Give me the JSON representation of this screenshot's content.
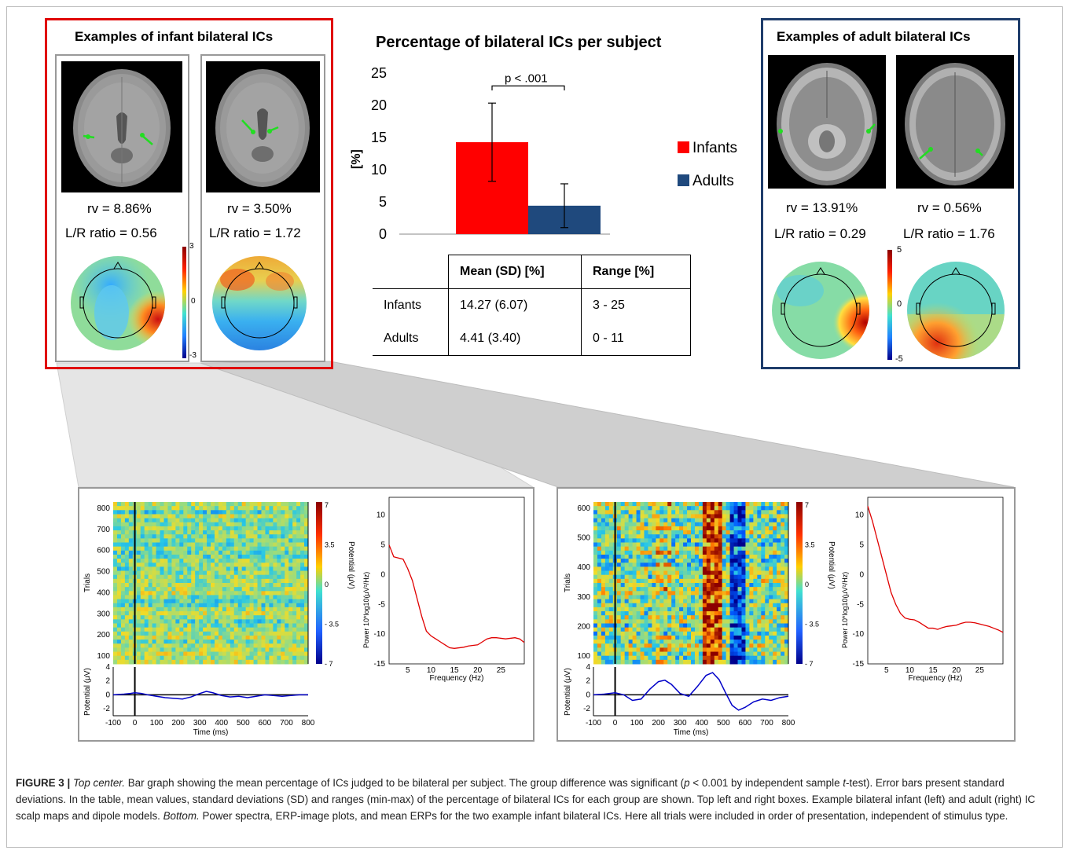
{
  "infant_panel": {
    "title": "Examples of infant bilateral ICs",
    "ic1": {
      "rv": "rv = 8.86%",
      "lr": "L/R ratio = 0.56"
    },
    "ic2": {
      "rv": "rv = 3.50%",
      "lr": "L/R ratio = 1.72"
    },
    "scale": {
      "max": "3",
      "mid": "0",
      "min": "-3"
    }
  },
  "adult_panel": {
    "title": "Examples of adult bilateral ICs",
    "ic1": {
      "rv": "rv = 13.91%",
      "lr": "L/R ratio = 0.29"
    },
    "ic2": {
      "rv": "rv = 0.56%",
      "lr": "L/R ratio = 1.76"
    },
    "scale": {
      "max": "5",
      "mid": "0",
      "min": "-5"
    }
  },
  "chart_data": [
    {
      "type": "bar",
      "title": "Percentage of bilateral ICs per subject",
      "ylabel": "[%]",
      "ylim": [
        0,
        25
      ],
      "yticks": [
        "0",
        "5",
        "10",
        "15",
        "20",
        "25"
      ],
      "series": [
        {
          "name": "Infants",
          "value": 14.27,
          "sd": 6.07,
          "color": "#ff0000"
        },
        {
          "name": "Adults",
          "value": 4.41,
          "sd": 3.4,
          "color": "#1f497d"
        }
      ],
      "annotation": "p < .001"
    },
    {
      "type": "line",
      "xlabel": "Frequency (Hz)",
      "ylabel": "Power 10*log10(μV²/Hz)",
      "xlim": [
        1,
        30
      ],
      "ylim": [
        -15,
        13
      ],
      "xticks": [
        "5",
        "10",
        "15",
        "20",
        "25"
      ],
      "yticks": [
        "10",
        "5",
        "0",
        "-5",
        "-10",
        "-15"
      ],
      "x": [
        1,
        2,
        3,
        4,
        5,
        6,
        7,
        8,
        9,
        10,
        11,
        12,
        13,
        14,
        15,
        16,
        17,
        18,
        19,
        20,
        21,
        22,
        23,
        24,
        25,
        26,
        27,
        28,
        29,
        30
      ],
      "y": [
        5,
        3,
        2.8,
        2.6,
        1,
        -1,
        -4,
        -7,
        -9.5,
        -10.3,
        -10.8,
        -11.3,
        -11.8,
        -12.3,
        -12.4,
        -12.3,
        -12.2,
        -12,
        -11.9,
        -11.8,
        -11.3,
        -10.8,
        -10.6,
        -10.6,
        -10.7,
        -10.8,
        -10.7,
        -10.6,
        -10.8,
        -11.4
      ],
      "color": "#e00000"
    },
    {
      "type": "line",
      "xlabel": "Frequency (Hz)",
      "ylabel": "Power 10*log10(μV²/Hz)",
      "xlim": [
        1,
        30
      ],
      "ylim": [
        -15,
        13
      ],
      "xticks": [
        "5",
        "10",
        "15",
        "20",
        "25"
      ],
      "yticks": [
        "10",
        "5",
        "0",
        "-5",
        "-10",
        "-15"
      ],
      "x": [
        1,
        2,
        3,
        4,
        5,
        6,
        7,
        8,
        9,
        10,
        11,
        12,
        13,
        14,
        15,
        16,
        17,
        18,
        19,
        20,
        21,
        22,
        23,
        24,
        25,
        26,
        27,
        28,
        29,
        30
      ],
      "y": [
        11.5,
        9,
        6,
        3,
        0,
        -3,
        -5,
        -6.5,
        -7.3,
        -7.5,
        -7.6,
        -8,
        -8.5,
        -9,
        -9,
        -9.2,
        -8.9,
        -8.7,
        -8.6,
        -8.5,
        -8.2,
        -8,
        -8,
        -8.1,
        -8.3,
        -8.5,
        -8.7,
        -9,
        -9.3,
        -9.7
      ],
      "color": "#e00000"
    },
    {
      "type": "line",
      "xlabel": "Time (ms)",
      "ylabel": "Potential (μV)",
      "xlim": [
        -100,
        800
      ],
      "ylim": [
        -3,
        4
      ],
      "xticks": [
        "-100",
        "0",
        "100",
        "200",
        "300",
        "400",
        "500",
        "600",
        "700",
        "800"
      ],
      "yticks": [
        "4",
        "2",
        "0",
        "-2"
      ],
      "x": [
        -100,
        -50,
        -20,
        0,
        30,
        60,
        100,
        140,
        180,
        220,
        260,
        300,
        330,
        360,
        400,
        440,
        480,
        520,
        560,
        600,
        640,
        680,
        720,
        760,
        800
      ],
      "y": [
        0,
        0.1,
        0.2,
        0.3,
        0.2,
        0,
        -0.2,
        -0.4,
        -0.5,
        -0.6,
        -0.3,
        0.2,
        0.5,
        0.3,
        -0.1,
        -0.3,
        -0.2,
        -0.4,
        -0.2,
        0,
        -0.1,
        -0.2,
        -0.1,
        0,
        0
      ],
      "color": "#0000c8"
    },
    {
      "type": "line",
      "xlabel": "Time (ms)",
      "ylabel": "Potential (μV)",
      "xlim": [
        -100,
        800
      ],
      "ylim": [
        -3,
        4
      ],
      "xticks": [
        "-100",
        "0",
        "100",
        "200",
        "300",
        "400",
        "500",
        "600",
        "700",
        "800"
      ],
      "yticks": [
        "4",
        "2",
        "0",
        "-2"
      ],
      "x": [
        -100,
        -50,
        0,
        40,
        80,
        120,
        160,
        200,
        230,
        260,
        300,
        340,
        380,
        420,
        450,
        480,
        510,
        540,
        570,
        600,
        640,
        680,
        720,
        760,
        800
      ],
      "y": [
        0,
        0.1,
        0.3,
        0,
        -0.8,
        -0.6,
        0.8,
        1.9,
        2.1,
        1.5,
        0.2,
        -0.2,
        1.2,
        2.8,
        3.2,
        2.2,
        0.3,
        -1.5,
        -2.2,
        -1.8,
        -1,
        -0.6,
        -0.8,
        -0.4,
        -0.2
      ],
      "color": "#0000c8"
    }
  ],
  "erp_image": {
    "ylabel": "Trials",
    "colorbar_label": "Potential (μV)",
    "infant": {
      "yticks": [
        "800",
        "700",
        "600",
        "500",
        "400",
        "300",
        "200",
        "100"
      ],
      "cb_ticks": [
        "7",
        "3.5",
        "0",
        "- 3.5",
        "- 7"
      ]
    },
    "adult": {
      "yticks": [
        "600",
        "500",
        "400",
        "300",
        "200",
        "100"
      ],
      "cb_ticks": [
        "7",
        "3.5",
        "0",
        "- 3.5",
        "- 7"
      ]
    }
  },
  "table": {
    "headers": [
      "Mean (SD) [%]",
      "Range [%]"
    ],
    "rows": [
      {
        "group": "Infants",
        "mean": "14.27 (6.07)",
        "range": "3 - 25"
      },
      {
        "group": "Adults",
        "mean": "4.41 (3.40)",
        "range": "0 - 11"
      }
    ]
  },
  "caption": {
    "label": "FIGURE 3 |",
    "part1_italic": "Top center.",
    "part1": " Bar graph showing the mean percentage of ICs judged to be bilateral per subject. The group difference was significant (",
    "p_italic": "p",
    "part2": " < 0.001 by independent sample ",
    "t_italic": "t",
    "part3": "-test). Error bars present standard deviations. In the table, mean values, standard deviations (SD) and ranges (min-max) of the percentage of bilateral ICs for each group are shown. Top left and right boxes. Example bilateral infant (left) and adult (right) IC scalp maps and dipole models. ",
    "bottom_italic": "Bottom.",
    "part4": " Power spectra, ERP-image plots, and mean ERPs for the two example infant bilateral ICs. Here all trials were included in order of presentation, independent of stimulus type."
  }
}
